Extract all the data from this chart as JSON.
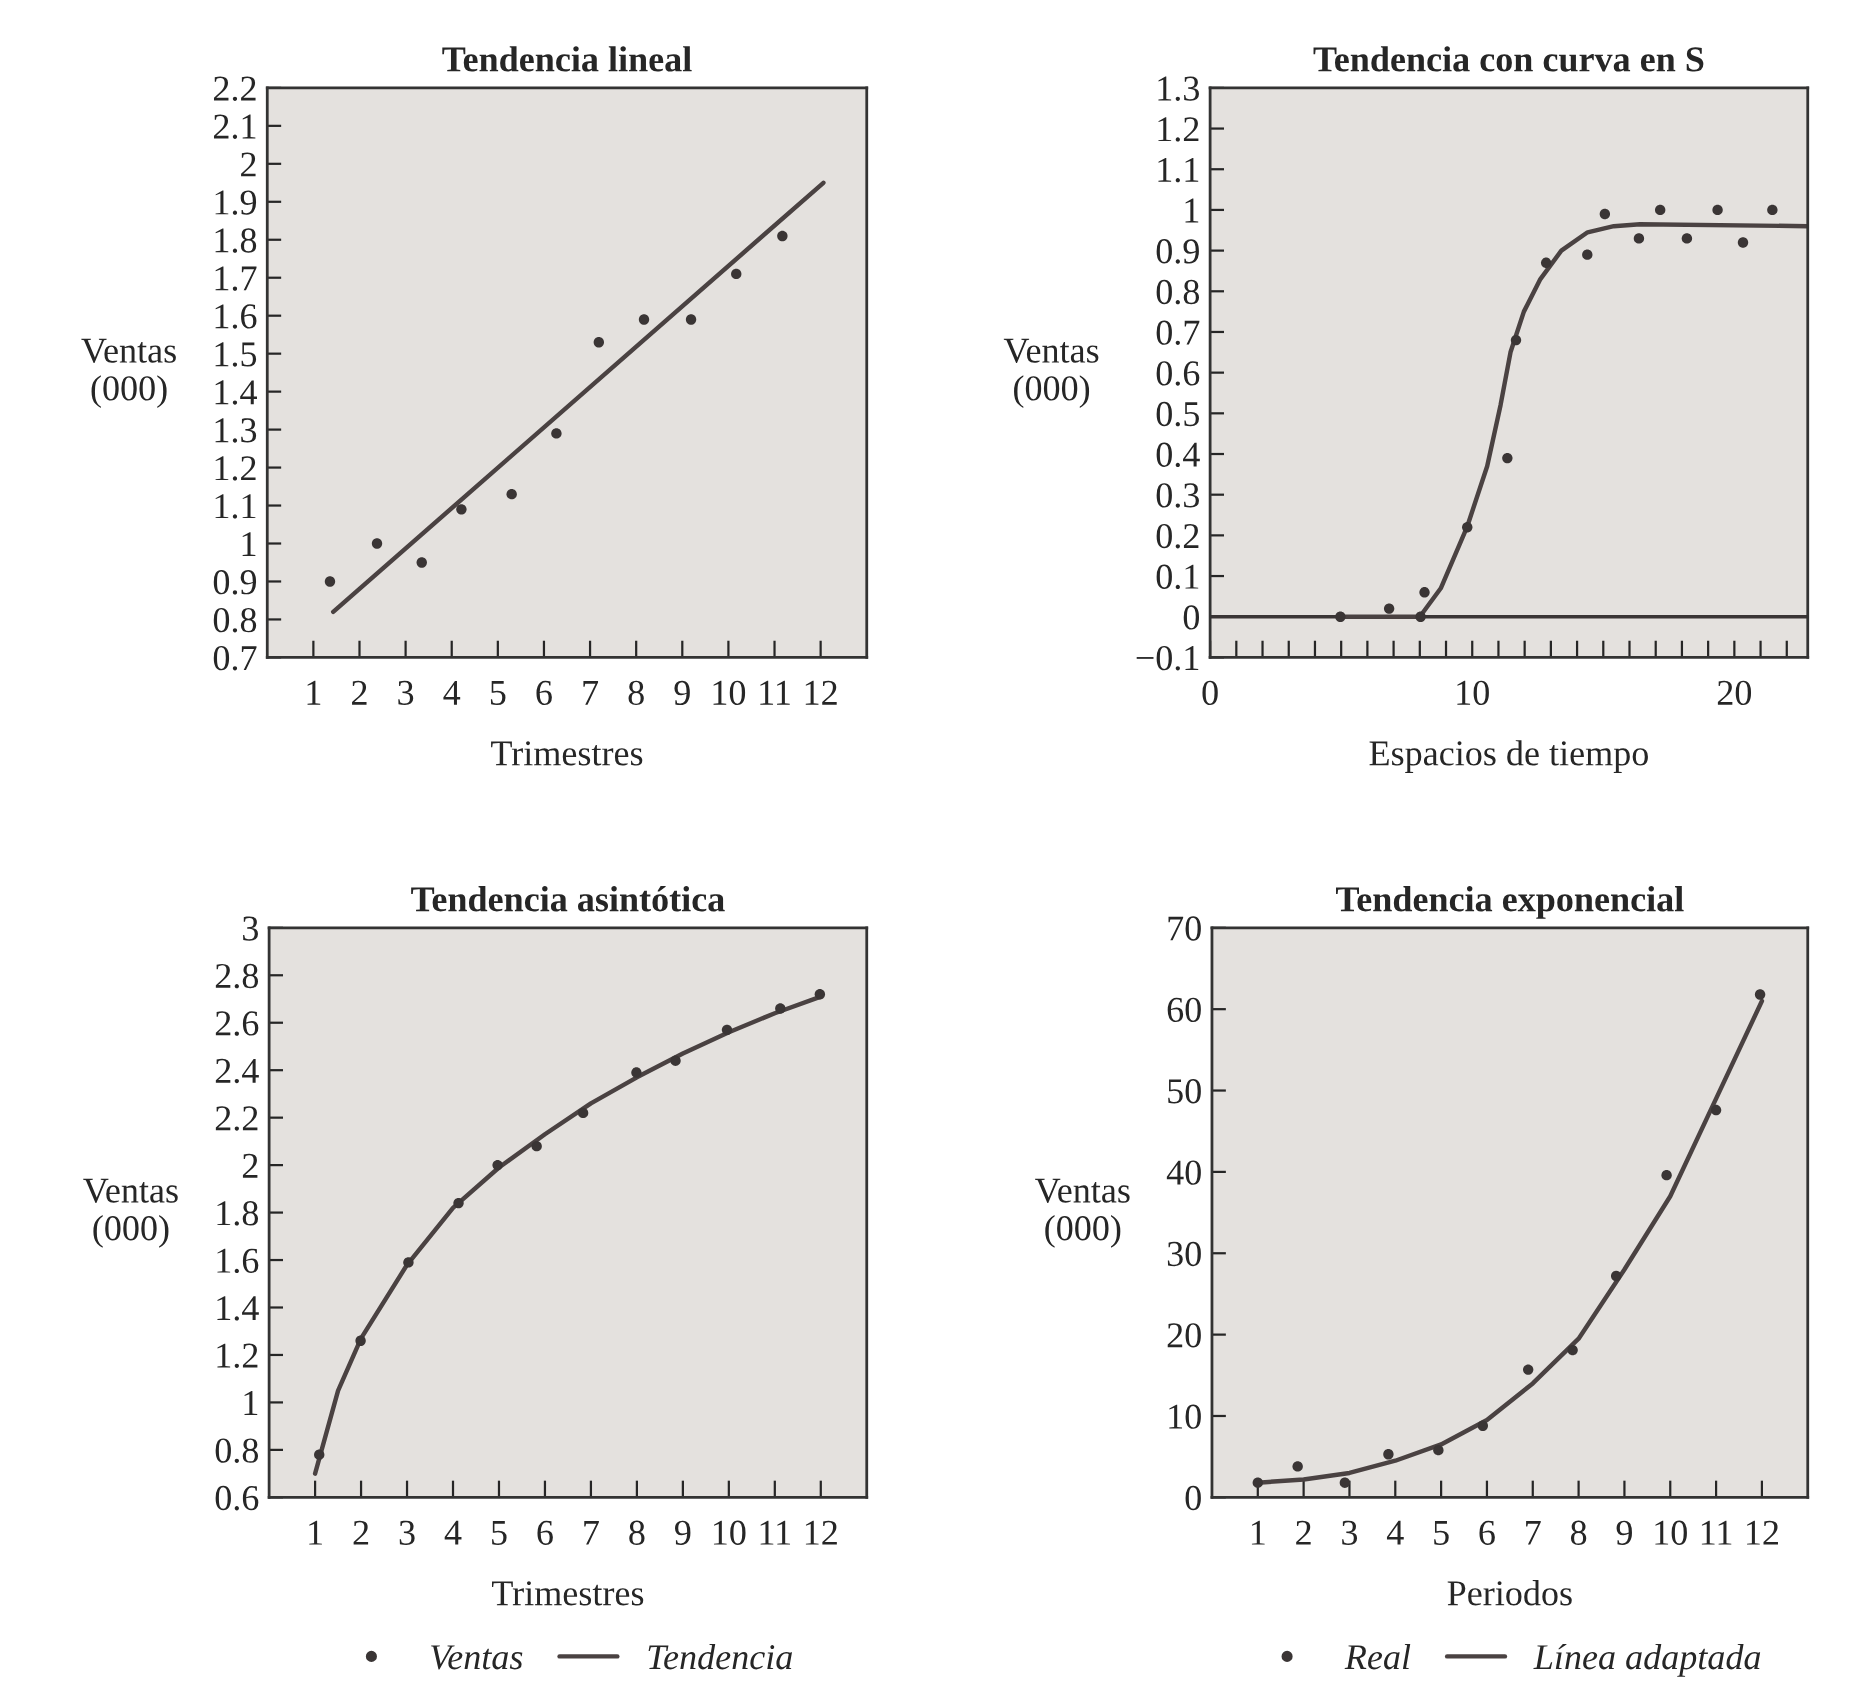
{
  "chart_data": [
    {
      "type": "scatter",
      "title": "Tendencia lineal",
      "xlabel": "Trimestres",
      "ylabel": "Ventas\n(000)",
      "xlim": [
        0,
        13
      ],
      "xticks": [
        1,
        2,
        3,
        4,
        5,
        6,
        7,
        8,
        9,
        10,
        11,
        12
      ],
      "ylim": [
        0.7,
        2.2
      ],
      "yticks": [
        0.7,
        0.8,
        0.9,
        1,
        1.1,
        1.2,
        1.3,
        1.4,
        1.5,
        1.6,
        1.7,
        1.8,
        1.9,
        2,
        2.1,
        2.2
      ],
      "grid": false,
      "legend": false,
      "series": [
        {
          "color": "#3a3535",
          "x": [
            1.36,
            2.38,
            3.35,
            4.21,
            5.3,
            6.27,
            7.19,
            8.17,
            9.19,
            10.17,
            11.17
          ],
          "values": [
            0.9,
            1.0,
            0.95,
            1.09,
            1.13,
            1.29,
            1.53,
            1.59,
            1.59,
            1.71,
            1.81
          ]
        },
        {
          "type": "line",
          "color": "#4a4242",
          "x": [
            1.43,
            12.06
          ],
          "values": [
            0.82,
            1.95
          ]
        }
      ]
    },
    {
      "type": "scatter",
      "title": "Tendencia con curva en S",
      "xlabel": "Espacios de tiempo",
      "ylabel": "Ventas\n(000)",
      "xlim": [
        0,
        22.8
      ],
      "xticks": [
        0,
        {
          "value": 1,
          "label": null
        },
        {
          "value": 2,
          "label": null
        },
        {
          "value": 3,
          "label": null
        },
        {
          "value": 4,
          "label": null
        },
        {
          "value": 5,
          "label": null
        },
        {
          "value": 6,
          "label": null
        },
        {
          "value": 7,
          "label": null
        },
        {
          "value": 8,
          "label": null
        },
        {
          "value": 9,
          "label": null
        },
        10,
        {
          "value": 11,
          "label": null
        },
        {
          "value": 12,
          "label": null
        },
        {
          "value": 13,
          "label": null
        },
        {
          "value": 14,
          "label": null
        },
        {
          "value": 15,
          "label": null
        },
        {
          "value": 16,
          "label": null
        },
        {
          "value": 17,
          "label": null
        },
        {
          "value": 18,
          "label": null
        },
        {
          "value": 19,
          "label": null
        },
        20,
        {
          "value": 21,
          "label": null
        },
        {
          "value": 22,
          "label": null
        }
      ],
      "ylim": [
        -0.1,
        1.3
      ],
      "yticks": [
        {
          "value": -0.1,
          "label": "−0.1"
        },
        0,
        0.1,
        0.2,
        0.3,
        0.4,
        0.5,
        0.6,
        0.7,
        0.8,
        0.9,
        1,
        1.1,
        1.2,
        1.3
      ],
      "grid": false,
      "legend": false,
      "ref_lines": [
        {
          "axis": "y",
          "value": 0,
          "color": "#3a3535"
        }
      ],
      "series": [
        {
          "color": "#3a3535",
          "x": [
            4.97,
            6.83,
            8.03,
            8.18,
            9.81,
            11.34,
            11.67,
            12.82,
            14.39,
            15.06,
            16.36,
            17.17,
            18.19,
            19.36,
            20.33,
            21.45
          ],
          "values": [
            0.0,
            0.02,
            0.0,
            0.06,
            0.22,
            0.39,
            0.68,
            0.87,
            0.89,
            0.99,
            0.93,
            1.0,
            0.93,
            1.0,
            0.92,
            1.0
          ]
        },
        {
          "type": "line",
          "color": "#4a4242",
          "x": [
            5,
            8,
            8.8,
            9.8,
            10.57,
            11.08,
            11.46,
            11.97,
            12.6,
            13.4,
            14.4,
            15.4,
            16.4,
            22.8
          ],
          "values": [
            0,
            0,
            0.07,
            0.22,
            0.37,
            0.52,
            0.65,
            0.75,
            0.83,
            0.9,
            0.945,
            0.96,
            0.965,
            0.96
          ]
        }
      ]
    },
    {
      "type": "scatter",
      "title": "Tendencia asintótica",
      "xlabel": "Trimestres",
      "ylabel": "Ventas\n(000)",
      "xlim": [
        0,
        13
      ],
      "xticks": [
        1,
        2,
        3,
        4,
        5,
        6,
        7,
        8,
        9,
        10,
        11,
        12
      ],
      "ylim": [
        0.6,
        3
      ],
      "yticks": [
        0.6,
        0.8,
        1,
        1.2,
        1.4,
        1.6,
        1.8,
        2,
        2.2,
        2.4,
        2.6,
        2.8,
        3
      ],
      "grid": false,
      "legend": "bottom",
      "series": [
        {
          "name": "Ventas",
          "color": "#3a3535",
          "x": [
            1.09,
            1.99,
            3.03,
            4.12,
            4.97,
            5.82,
            6.83,
            7.99,
            8.84,
            9.96,
            11.12,
            11.98
          ],
          "values": [
            0.78,
            1.26,
            1.59,
            1.84,
            2.0,
            2.08,
            2.22,
            2.39,
            2.44,
            2.57,
            2.66,
            2.72
          ]
        },
        {
          "name": "Tendencia",
          "type": "line",
          "color": "#4a4242",
          "x": [
            1,
            1.5,
            2,
            3,
            4,
            5,
            6,
            7,
            8,
            9,
            10,
            11,
            12
          ],
          "values": [
            0.7,
            1.05,
            1.27,
            1.58,
            1.82,
            1.99,
            2.13,
            2.26,
            2.37,
            2.47,
            2.56,
            2.64,
            2.71
          ]
        }
      ]
    },
    {
      "type": "scatter",
      "title": "Tendencia exponencial",
      "xlabel": "Periodos",
      "ylabel": "Ventas\n(000)",
      "xlim": [
        0,
        13
      ],
      "xticks": [
        1,
        2,
        3,
        4,
        5,
        6,
        7,
        8,
        9,
        10,
        11,
        12
      ],
      "ylim": [
        0,
        70
      ],
      "yticks": [
        0,
        10,
        20,
        30,
        40,
        50,
        60,
        70
      ],
      "grid": false,
      "legend": "bottom",
      "series": [
        {
          "name": "Real",
          "color": "#3a3535",
          "x": [
            1.0,
            1.87,
            2.9,
            3.85,
            4.94,
            5.91,
            6.9,
            7.87,
            8.82,
            9.92,
            11.0,
            11.96
          ],
          "values": [
            1.8,
            3.8,
            1.8,
            5.3,
            5.8,
            8.8,
            15.7,
            18.1,
            27.2,
            39.6,
            47.6,
            61.8
          ]
        },
        {
          "name": "Línea adaptada",
          "type": "line",
          "color": "#4a4242",
          "x": [
            1,
            2,
            3,
            4,
            5,
            6,
            7,
            8,
            9,
            10,
            11,
            12
          ],
          "values": [
            1.8,
            2.2,
            3.0,
            4.5,
            6.5,
            9.5,
            14,
            19.5,
            28,
            37,
            49,
            61
          ]
        }
      ]
    }
  ]
}
